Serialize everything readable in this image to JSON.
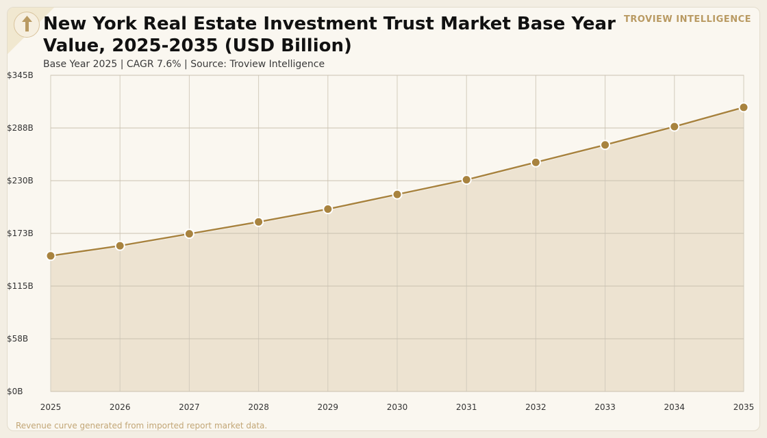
{
  "header": {
    "title": "New York Real Estate Investment Trust Market Base Year Value, 2025-2035 (USD Billion)",
    "subtitle": "Base Year 2025 | CAGR 7.6% | Source: Troview Intelligence",
    "brand": "TROVIEW INTELLIGENCE"
  },
  "footer": {
    "note": "Revenue curve generated from imported report market data."
  },
  "colors": {
    "line": "#a8833f",
    "fill": "#ede3d1",
    "marker": "#a8833f",
    "grid": "#c9c0b0",
    "background": "#faf7f0"
  },
  "icons": {
    "logo": "up-arrow-icon"
  },
  "chart_data": {
    "type": "area",
    "title": "New York Real Estate Investment Trust Market Base Year Value, 2025-2035 (USD Billion)",
    "x": [
      "2025",
      "2026",
      "2027",
      "2028",
      "2029",
      "2030",
      "2031",
      "2032",
      "2033",
      "2034",
      "2035"
    ],
    "series": [
      {
        "values": [
          148,
          159,
          172,
          185,
          199,
          215,
          231,
          250,
          269,
          289,
          310
        ]
      }
    ],
    "y_ticks": [
      "$0B",
      "$58B",
      "$115B",
      "$173B",
      "$230B",
      "$288B",
      "$345B"
    ],
    "ylim": [
      0,
      345
    ],
    "grid": true,
    "markers": true
  }
}
